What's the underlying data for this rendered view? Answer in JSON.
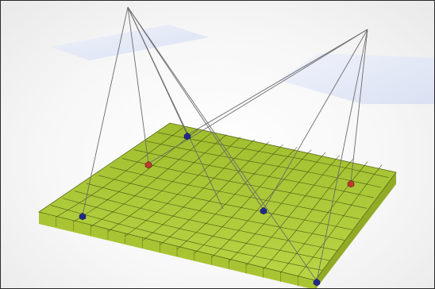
{
  "scene": {
    "description_type": "multi-view camera projection onto deformed terrain grid",
    "colors": {
      "background": "#f4f4f4",
      "frame_border": "#2a2a2a",
      "terrain_top": "#b3cf3c",
      "terrain_side": "#9db62d",
      "terrain_front": "#a9c433",
      "grid_line": "#3d4a12",
      "image_plane": "#dfe6f7",
      "ray_line": "#6b6b6b",
      "marker_blue": "#1f2a8c",
      "marker_red": "#c0392b"
    },
    "markers": [
      {
        "name": "far-left-marker",
        "color": "blue"
      },
      {
        "name": "back-marker",
        "color": "blue"
      },
      {
        "name": "left-marker",
        "color": "red"
      },
      {
        "name": "center-marker",
        "color": "blue"
      },
      {
        "name": "right-marker",
        "color": "red"
      },
      {
        "name": "front-marker",
        "color": "blue"
      }
    ]
  }
}
